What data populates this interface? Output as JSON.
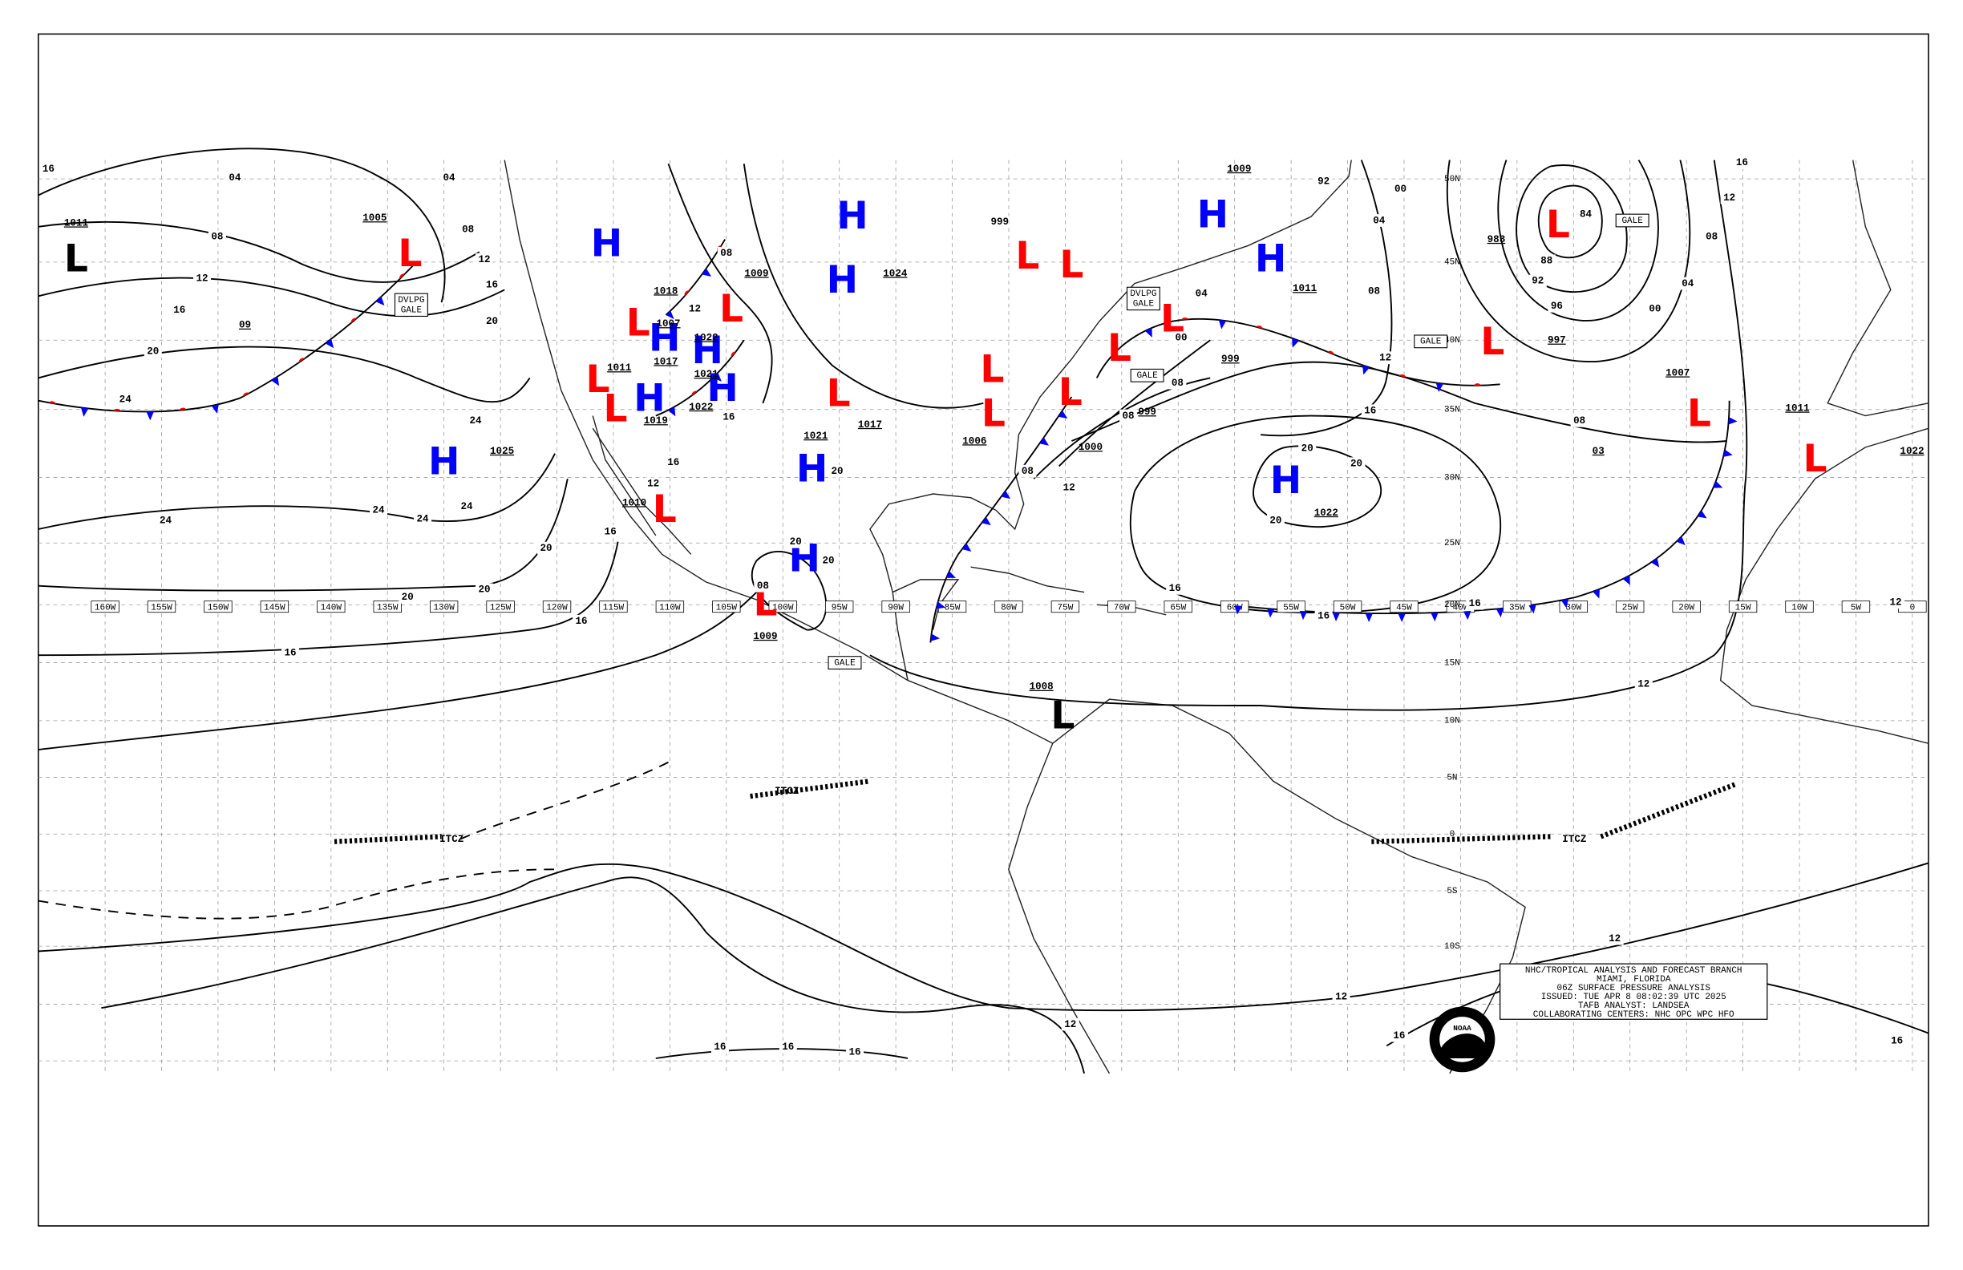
{
  "title_block": {
    "lines": [
      "NHC/TROPICAL ANALYSIS AND FORECAST BRANCH",
      "MIAMI, FLORIDA",
      "06Z SURFACE PRESSURE ANALYSIS",
      "ISSUED: TUE APR 8 08:02:39 UTC 2025",
      "TAFB ANALYST: LANDSEA",
      "COLLABORATING CENTERS: NHC OPC WPC HFO"
    ]
  },
  "logo_text": "NOAA",
  "longitude_labels": [
    "160W",
    "155W",
    "150W",
    "145W",
    "140W",
    "135W",
    "130W",
    "125W",
    "120W",
    "115W",
    "110W",
    "105W",
    "100W",
    "95W",
    "90W",
    "85W",
    "80W",
    "75W",
    "70W",
    "65W",
    "60W",
    "55W",
    "50W",
    "45W",
    "40W",
    "35W",
    "30W",
    "25W",
    "20W",
    "15W",
    "10W",
    "5W",
    "0"
  ],
  "latitude_labels": [
    "50N",
    "45N",
    "40N",
    "35N",
    "30N",
    "25N",
    "20N",
    "15N",
    "10N",
    "5N",
    "0",
    "5S",
    "10S"
  ],
  "pressure_centers": [
    "H",
    "H",
    "H",
    "H",
    "H",
    "H",
    "H",
    "H",
    "H",
    "H",
    "H",
    "H",
    "H",
    "L",
    "L",
    "L",
    "L",
    "L",
    "L",
    "L",
    "L",
    "L",
    "L",
    "L",
    "L",
    "L",
    "L",
    "L",
    "L",
    "L",
    "L",
    "L",
    "L",
    "L"
  ],
  "central_pressures": [
    "1011",
    "1005",
    "1009",
    "1024",
    "1007",
    "1017",
    "1021",
    "1011",
    "1018",
    "1019",
    "1022",
    "1021",
    "1017",
    "1025",
    "1010",
    "1009",
    "1008",
    "1006",
    "1000",
    "999",
    "999",
    "1011",
    "983",
    "997",
    "1007",
    "1011",
    "1022",
    "1022",
    "1009",
    "1022",
    "03",
    "09"
  ],
  "isobar_labels": [
    "04",
    "08",
    "12",
    "16",
    "20",
    "24",
    "24",
    "24",
    "24",
    "24",
    "24",
    "20",
    "20",
    "20",
    "16",
    "16",
    "16",
    "12",
    "16",
    "08",
    "12",
    "16",
    "20",
    "20",
    "08",
    "20",
    "12",
    "08",
    "04",
    "16",
    "20",
    "999",
    "00",
    "04",
    "08",
    "12",
    "16",
    "84",
    "88",
    "92",
    "96",
    "00",
    "04",
    "08",
    "12",
    "16",
    "08",
    "20",
    "20",
    "20",
    "16",
    "16",
    "16",
    "12",
    "08",
    "08",
    "04",
    "00",
    "08",
    "92",
    "12",
    "12",
    "12",
    "12",
    "16",
    "16",
    "16",
    "16",
    "16",
    "12",
    "16"
  ],
  "feature_labels": [
    [
      "DVLPG",
      "GALE"
    ],
    [
      "DVLPG",
      "GALE"
    ],
    [
      "GALE"
    ],
    [
      "GALE"
    ],
    [
      "GALE"
    ],
    [
      "GALE"
    ]
  ],
  "itcz_labels": [
    "ITCZ",
    "ITCZ",
    "ITCZ"
  ]
}
